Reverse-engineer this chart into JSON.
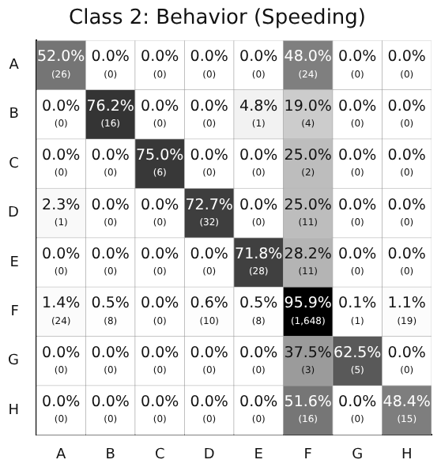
{
  "chart_data": {
    "type": "heatmap",
    "title": "Class 2: Behavior (Speeding)",
    "data_labels": true,
    "categories": [
      "A",
      "B",
      "C",
      "D",
      "E",
      "F",
      "G",
      "H"
    ],
    "y_categories": [
      "A",
      "B",
      "C",
      "D",
      "E",
      "F",
      "G",
      "H"
    ],
    "cells": [
      [
        52.0,
        0.0,
        0.0,
        0.0,
        0.0,
        48.0,
        0.0,
        0.0
      ],
      [
        0.0,
        76.2,
        0.0,
        0.0,
        4.8,
        19.0,
        0.0,
        0.0
      ],
      [
        0.0,
        0.0,
        75.0,
        0.0,
        0.0,
        25.0,
        0.0,
        0.0
      ],
      [
        2.3,
        0.0,
        0.0,
        72.7,
        0.0,
        25.0,
        0.0,
        0.0
      ],
      [
        0.0,
        0.0,
        0.0,
        0.0,
        71.8,
        28.2,
        0.0,
        0.0
      ],
      [
        1.4,
        0.5,
        0.0,
        0.6,
        0.5,
        95.9,
        0.1,
        1.1
      ],
      [
        0.0,
        0.0,
        0.0,
        0.0,
        0.0,
        37.5,
        62.5,
        0.0
      ],
      [
        0.0,
        0.0,
        0.0,
        0.0,
        0.0,
        51.6,
        0.0,
        48.4
      ]
    ],
    "cell_labels": [
      [
        "52.0%",
        "0.0%",
        "0.0%",
        "0.0%",
        "0.0%",
        "48.0%",
        "0.0%",
        "0.0%"
      ],
      [
        "0.0%",
        "76.2%",
        "0.0%",
        "0.0%",
        "4.8%",
        "19.0%",
        "0.0%",
        "0.0%"
      ],
      [
        "0.0%",
        "0.0%",
        "75.0%",
        "0.0%",
        "0.0%",
        "25.0%",
        "0.0%",
        "0.0%"
      ],
      [
        "2.3%",
        "0.0%",
        "0.0%",
        "72.7%",
        "0.0%",
        "25.0%",
        "0.0%",
        "0.0%"
      ],
      [
        "0.0%",
        "0.0%",
        "0.0%",
        "0.0%",
        "71.8%",
        "28.2%",
        "0.0%",
        "0.0%"
      ],
      [
        "1.4%",
        "0.5%",
        "0.0%",
        "0.6%",
        "0.5%",
        "95.9%",
        "0.1%",
        "1.1%"
      ],
      [
        "0.0%",
        "0.0%",
        "0.0%",
        "0.0%",
        "0.0%",
        "37.5%",
        "62.5%",
        "0.0%"
      ],
      [
        "0.0%",
        "0.0%",
        "0.0%",
        "0.0%",
        "0.0%",
        "51.6%",
        "0.0%",
        "48.4%"
      ]
    ],
    "annotations": [
      "(26)",
      "(0)",
      "(0)",
      "(0)",
      "(0)",
      "(24)",
      "(0)",
      "(0)",
      "(0)",
      "(16)",
      "(0)",
      "(0)",
      "(1)",
      "(4)",
      "(0)",
      "(0)",
      "(0)",
      "(0)",
      "(6)",
      "(0)",
      "(0)",
      "(2)",
      "(0)",
      "(0)",
      "(1)",
      "(0)",
      "(0)",
      "(32)",
      "(0)",
      "(11)",
      "(0)",
      "(0)",
      "(0)",
      "(0)",
      "(0)",
      "(0)",
      "(28)",
      "(11)",
      "(0)",
      "(0)",
      "(24)",
      "(8)",
      "(0)",
      "(10)",
      "(8)",
      "(1,648)",
      "(1)",
      "(19)",
      "(0)",
      "(0)",
      "(0)",
      "(0)",
      "(0)",
      "(3)",
      "(5)",
      "(0)",
      "(0)",
      "(0)",
      "(0)",
      "(0)",
      "(0)",
      "(16)",
      "(0)",
      "(15)"
    ]
  }
}
